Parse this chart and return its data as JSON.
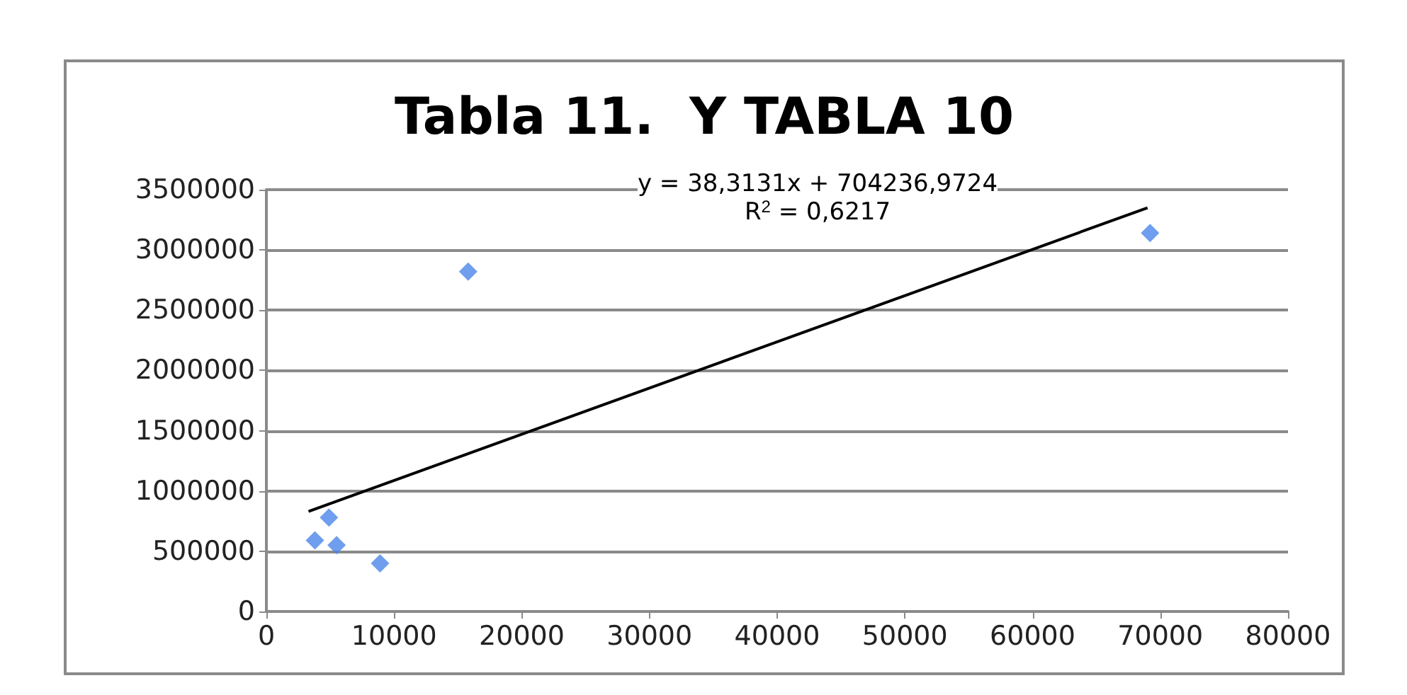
{
  "chart_data": {
    "type": "scatter",
    "title": "Tabla 11.  Y TABLA 10",
    "xlim": [
      0,
      80000
    ],
    "xticks": [
      0,
      10000,
      20000,
      30000,
      40000,
      50000,
      60000,
      70000,
      80000
    ],
    "ylim": [
      0,
      3500000
    ],
    "yticks": [
      0,
      500000,
      1000000,
      1500000,
      2000000,
      2500000,
      3000000,
      3500000
    ],
    "grid": "y",
    "marker": "diamond",
    "series": [
      {
        "color": "#4a86e8",
        "x": [
          3800,
          4900,
          5500,
          8900,
          15800,
          69200
        ],
        "values": [
          590000,
          780000,
          550000,
          400000,
          2820000,
          3140000
        ]
      },
      {
        "type": "line",
        "color": "#000000",
        "marker": "none",
        "line_style": "solid",
        "x": [
          3300,
          69000
        ],
        "values": [
          830000,
          3350000
        ]
      }
    ],
    "annotations": [
      "y = 38,3131x + 704236,9724",
      "R$^{2}$ = 0,6217"
    ]
  }
}
